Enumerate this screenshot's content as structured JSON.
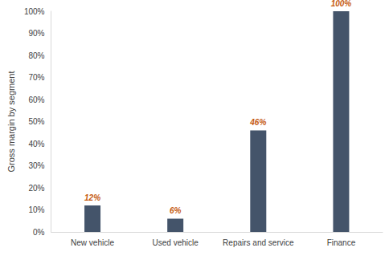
{
  "chart_data": {
    "type": "bar",
    "y_label": "Gross margin by segment",
    "categories": [
      "New vehicle",
      "Used vehicle",
      "Repairs and service",
      "Finance"
    ],
    "values": [
      12,
      6,
      46,
      100
    ],
    "value_labels": [
      "12%",
      "6%",
      "46%",
      "100%"
    ],
    "data_labels": true,
    "color": "#44546a",
    "grid": false,
    "ylim": [
      0,
      100
    ],
    "yticks": [
      {
        "value": 0,
        "label": "0%"
      },
      {
        "value": 10,
        "label": "10%"
      },
      {
        "value": 20,
        "label": "20%"
      },
      {
        "value": 30,
        "label": "30%"
      },
      {
        "value": 40,
        "label": "40%"
      },
      {
        "value": 50,
        "label": "50%"
      },
      {
        "value": 60,
        "label": "60%"
      },
      {
        "value": 70,
        "label": "70%"
      },
      {
        "value": 80,
        "label": "80%"
      },
      {
        "value": 90,
        "label": "90%"
      },
      {
        "value": 100,
        "label": "100%"
      }
    ]
  }
}
